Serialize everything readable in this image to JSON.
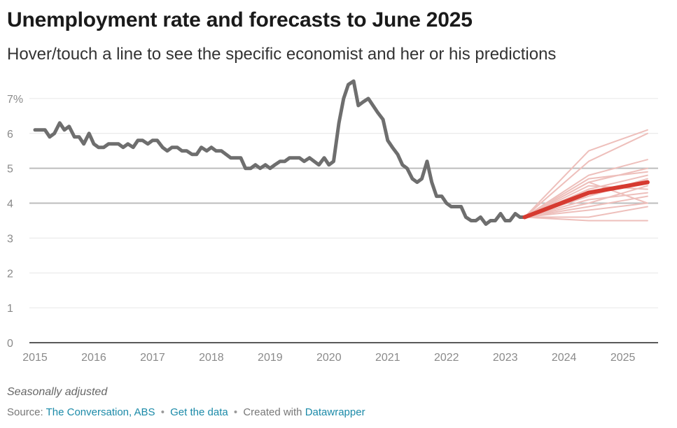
{
  "title": "Unemployment rate and forecasts to June 2025",
  "subtitle": "Hover/touch a line to see the specific economist and her or his predictions",
  "notes": "Seasonally adjusted",
  "footer": {
    "source_prefix": "Source:",
    "source_link": "The Conversation, ABS",
    "get_data": "Get the data",
    "created_with": "Created with",
    "tool": "Datawrapper"
  },
  "colors": {
    "history": "#6e6e6e",
    "forecast_median": "#d63a30",
    "forecast_economists": "#eebfbb",
    "link": "#1b8aa8"
  },
  "chart_data": {
    "type": "line",
    "y_tick_labels": [
      "7%",
      "6",
      "5",
      "4",
      "3",
      "2",
      "1",
      "0"
    ],
    "y_ticks": [
      7,
      6,
      5,
      4,
      3,
      2,
      1,
      0
    ],
    "x_ticks": [
      "2015",
      "2016",
      "2017",
      "2018",
      "2019",
      "2020",
      "2021",
      "2022",
      "2023",
      "2024",
      "2025"
    ],
    "xlim": [
      2015.0,
      2025.6
    ],
    "ylim": [
      0,
      7.5
    ],
    "grid": true,
    "emphasized_gridlines": [
      4,
      5
    ],
    "series": [
      {
        "role": "history",
        "x": [
          2015.0,
          2015.08,
          2015.17,
          2015.25,
          2015.33,
          2015.42,
          2015.5,
          2015.58,
          2015.67,
          2015.75,
          2015.83,
          2015.92,
          2016.0,
          2016.08,
          2016.17,
          2016.25,
          2016.33,
          2016.42,
          2016.5,
          2016.58,
          2016.67,
          2016.75,
          2016.83,
          2016.92,
          2017.0,
          2017.08,
          2017.17,
          2017.25,
          2017.33,
          2017.42,
          2017.5,
          2017.58,
          2017.67,
          2017.75,
          2017.83,
          2017.92,
          2018.0,
          2018.08,
          2018.17,
          2018.25,
          2018.33,
          2018.42,
          2018.5,
          2018.58,
          2018.67,
          2018.75,
          2018.83,
          2018.92,
          2019.0,
          2019.08,
          2019.17,
          2019.25,
          2019.33,
          2019.42,
          2019.5,
          2019.58,
          2019.67,
          2019.75,
          2019.83,
          2019.92,
          2020.0,
          2020.08,
          2020.17,
          2020.25,
          2020.33,
          2020.42,
          2020.5,
          2020.58,
          2020.67,
          2020.75,
          2020.83,
          2020.92,
          2021.0,
          2021.08,
          2021.17,
          2021.25,
          2021.33,
          2021.42,
          2021.5,
          2021.58,
          2021.67,
          2021.75,
          2021.83,
          2021.92,
          2022.0,
          2022.08,
          2022.17,
          2022.25,
          2022.33,
          2022.42,
          2022.5,
          2022.58,
          2022.67,
          2022.75,
          2022.83,
          2022.92,
          2023.0,
          2023.08,
          2023.17,
          2023.25,
          2023.33
        ],
        "y": [
          6.1,
          6.1,
          6.1,
          5.9,
          6.0,
          6.3,
          6.1,
          6.2,
          5.9,
          5.9,
          5.7,
          6.0,
          5.7,
          5.6,
          5.6,
          5.7,
          5.7,
          5.7,
          5.6,
          5.7,
          5.6,
          5.8,
          5.8,
          5.7,
          5.8,
          5.8,
          5.6,
          5.5,
          5.6,
          5.6,
          5.5,
          5.5,
          5.4,
          5.4,
          5.6,
          5.5,
          5.6,
          5.5,
          5.5,
          5.4,
          5.3,
          5.3,
          5.3,
          5.0,
          5.0,
          5.1,
          5.0,
          5.1,
          5.0,
          5.1,
          5.2,
          5.2,
          5.3,
          5.3,
          5.3,
          5.2,
          5.3,
          5.2,
          5.1,
          5.3,
          5.1,
          5.2,
          6.3,
          7.0,
          7.4,
          7.5,
          6.8,
          6.9,
          7.0,
          6.8,
          6.6,
          6.4,
          5.8,
          5.6,
          5.4,
          5.1,
          5.0,
          4.7,
          4.6,
          4.7,
          5.2,
          4.6,
          4.2,
          4.2,
          4.0,
          3.9,
          3.9,
          3.9,
          3.6,
          3.5,
          3.5,
          3.6,
          3.4,
          3.5,
          3.5,
          3.7,
          3.5,
          3.5,
          3.7,
          3.6,
          3.6
        ]
      },
      {
        "role": "forecast_median",
        "x": [
          2023.33,
          2024.42,
          2025.42
        ],
        "y": [
          3.6,
          4.3,
          4.6
        ]
      }
    ],
    "forecast_economists": [
      {
        "x": [
          2023.33,
          2024.42,
          2025.42
        ],
        "y": [
          3.6,
          5.5,
          6.1
        ]
      },
      {
        "x": [
          2023.33,
          2024.42,
          2025.42
        ],
        "y": [
          3.6,
          5.2,
          6.0
        ]
      },
      {
        "x": [
          2023.33,
          2024.42,
          2025.42
        ],
        "y": [
          3.6,
          4.8,
          5.25
        ]
      },
      {
        "x": [
          2023.33,
          2024.42,
          2025.42
        ],
        "y": [
          3.6,
          4.6,
          5.0
        ]
      },
      {
        "x": [
          2023.33,
          2024.42,
          2025.42
        ],
        "y": [
          3.6,
          4.7,
          4.9
        ]
      },
      {
        "x": [
          2023.33,
          2024.42,
          2025.42
        ],
        "y": [
          3.6,
          4.4,
          4.8
        ]
      },
      {
        "x": [
          2023.33,
          2024.42,
          2025.42
        ],
        "y": [
          3.6,
          4.2,
          4.7
        ]
      },
      {
        "x": [
          2023.33,
          2024.42,
          2025.42
        ],
        "y": [
          3.6,
          4.0,
          4.5
        ]
      },
      {
        "x": [
          2023.33,
          2024.42,
          2025.42
        ],
        "y": [
          3.6,
          4.5,
          4.4
        ]
      },
      {
        "x": [
          2023.33,
          2024.42,
          2025.42
        ],
        "y": [
          3.6,
          4.1,
          4.3
        ]
      },
      {
        "x": [
          2023.33,
          2024.42,
          2025.42
        ],
        "y": [
          3.6,
          3.9,
          4.2
        ]
      },
      {
        "x": [
          2023.33,
          2024.42,
          2025.42
        ],
        "y": [
          3.6,
          4.6,
          4.0
        ]
      },
      {
        "x": [
          2023.33,
          2024.42,
          2025.42
        ],
        "y": [
          3.6,
          3.8,
          4.0
        ]
      },
      {
        "x": [
          2023.33,
          2024.42,
          2025.42
        ],
        "y": [
          3.6,
          3.6,
          3.9
        ]
      },
      {
        "x": [
          2023.33,
          2024.42,
          2025.42
        ],
        "y": [
          3.6,
          3.5,
          3.5
        ]
      }
    ]
  }
}
